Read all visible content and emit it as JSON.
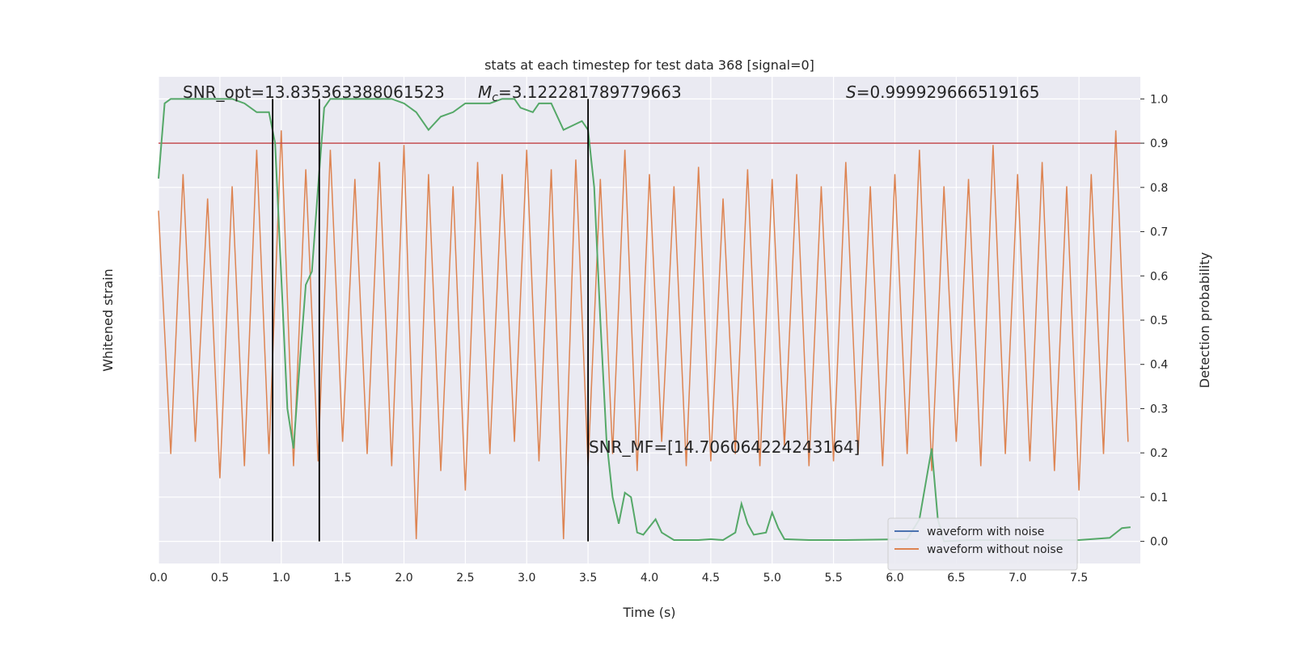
{
  "chart_data": {
    "type": "line",
    "title": "stats at each timestep for test data 368 [signal=0]",
    "x_label": "Time (s)",
    "y_label": "Whitened strain",
    "y2_label": "Detection probability",
    "xlim": [
      0,
      8
    ],
    "xticks": [
      {
        "value": 0,
        "label": "0.0"
      },
      0.5,
      {
        "value": 1,
        "label": "1.0"
      },
      1.5,
      {
        "value": 2,
        "label": "2.0"
      },
      2.5,
      {
        "value": 3,
        "label": "3.0"
      },
      3.5,
      {
        "value": 4,
        "label": "4.0"
      },
      4.5,
      {
        "value": 5,
        "label": "5.0"
      },
      5.5,
      {
        "value": 6,
        "label": "6.0"
      },
      6.5,
      {
        "value": 7,
        "label": "7.0"
      },
      7.5
    ],
    "ylim": [
      -1,
      1
    ],
    "y2lim": [
      -0.05,
      1.05
    ],
    "y2ticks": [
      {
        "value": 0,
        "label": "0.0"
      },
      0.1,
      0.2,
      0.3,
      0.4,
      0.5,
      0.6,
      0.7,
      0.8,
      0.9,
      {
        "value": 1,
        "label": "1.0"
      }
    ],
    "grid": true,
    "legend": "lower right",
    "x": [
      0,
      0.1,
      0.2,
      0.3,
      0.4,
      0.5,
      0.6,
      0.7,
      0.8,
      0.9,
      1,
      1.1,
      1.2,
      1.3,
      1.4,
      1.5,
      1.6,
      1.7,
      1.8,
      1.9,
      2,
      2.1,
      2.2,
      2.3,
      2.4,
      2.5,
      2.6,
      2.7,
      2.8,
      2.9,
      3,
      3.1,
      3.2,
      3.3,
      3.4,
      3.5,
      3.6,
      3.7,
      3.8,
      3.9,
      4,
      4.1,
      4.2,
      4.3,
      4.4,
      4.5,
      4.6,
      4.7,
      4.8,
      4.9,
      5,
      5.1,
      5.2,
      5.3,
      5.4,
      5.5,
      5.6,
      5.7,
      5.8,
      5.9,
      6,
      6.1,
      6.2,
      6.3,
      6.4,
      6.5,
      6.6,
      6.7,
      6.8,
      6.9,
      7,
      7.1,
      7.2,
      7.3,
      7.4,
      7.5,
      7.6,
      7.7,
      7.8,
      7.9
    ],
    "series": [
      {
        "name": "waveform with noise",
        "color": "#4c72b0"
      },
      {
        "name": "waveform without noise",
        "color": "#dd8452",
        "values": [
          0.45,
          -0.55,
          0.6,
          -0.5,
          0.5,
          -0.65,
          0.55,
          -0.6,
          0.7,
          -0.55,
          0.78,
          -0.6,
          0.62,
          -0.58,
          0.7,
          -0.5,
          0.58,
          -0.55,
          0.65,
          -0.6,
          0.72,
          -0.9,
          0.6,
          -0.62,
          0.55,
          -0.7,
          0.65,
          -0.55,
          0.6,
          -0.5,
          0.7,
          -0.58,
          0.62,
          -0.9,
          0.66,
          -0.6,
          0.58,
          -0.55,
          0.7,
          -0.62,
          0.6,
          -0.5,
          0.55,
          -0.6,
          0.63,
          -0.58,
          0.5,
          -0.55,
          0.62,
          -0.6,
          0.58,
          -0.52,
          0.6,
          -0.6,
          0.55,
          -0.58,
          0.65,
          -0.55,
          0.55,
          -0.6,
          0.6,
          -0.55,
          0.7,
          -0.62,
          0.55,
          -0.5,
          0.58,
          -0.6,
          0.72,
          -0.55,
          0.6,
          -0.58,
          0.65,
          -0.62,
          0.55,
          -0.7,
          0.6,
          -0.55,
          0.78,
          -0.5
        ]
      }
    ],
    "probability": {
      "color": "#55a868",
      "axis": "y2",
      "x": [
        0,
        0.05,
        0.1,
        0.3,
        0.6,
        0.7,
        0.8,
        0.9,
        0.95,
        1.0,
        1.05,
        1.1,
        1.15,
        1.2,
        1.25,
        1.3,
        1.35,
        1.4,
        1.9,
        2.0,
        2.1,
        2.2,
        2.3,
        2.4,
        2.5,
        2.6,
        2.7,
        2.8,
        2.9,
        2.95,
        3.05,
        3.1,
        3.2,
        3.3,
        3.45,
        3.5,
        3.55,
        3.6,
        3.65,
        3.7,
        3.75,
        3.8,
        3.85,
        3.9,
        3.95,
        4.05,
        4.1,
        4.2,
        4.4,
        4.5,
        4.6,
        4.7,
        4.75,
        4.8,
        4.85,
        4.95,
        5.0,
        5.05,
        5.1,
        5.3,
        5.6,
        6.1,
        6.2,
        6.25,
        6.3,
        6.35,
        6.4,
        6.6,
        7.0,
        7.5,
        7.75,
        7.85,
        7.92
      ],
      "values": [
        0.82,
        0.99,
        1.0,
        1.0,
        1.0,
        0.99,
        0.97,
        0.97,
        0.9,
        0.6,
        0.3,
        0.21,
        0.4,
        0.58,
        0.61,
        0.8,
        0.98,
        1.0,
        1.0,
        0.99,
        0.97,
        0.93,
        0.96,
        0.97,
        0.99,
        0.99,
        0.99,
        1.0,
        1.0,
        0.98,
        0.97,
        0.99,
        0.99,
        0.93,
        0.95,
        0.93,
        0.8,
        0.5,
        0.23,
        0.1,
        0.04,
        0.11,
        0.1,
        0.02,
        0.015,
        0.05,
        0.02,
        0.003,
        0.003,
        0.005,
        0.003,
        0.02,
        0.085,
        0.04,
        0.015,
        0.02,
        0.065,
        0.03,
        0.005,
        0.003,
        0.003,
        0.005,
        0.05,
        0.13,
        0.21,
        0.05,
        0.0,
        0.003,
        0.003,
        0.003,
        0.008,
        0.03,
        0.032
      ]
    },
    "threshold": {
      "value": 0.9,
      "color": "#c44e52",
      "axis": "y2"
    },
    "vlines": {
      "x": [
        0.93,
        1.31,
        3.5
      ],
      "color": "#000000"
    },
    "annotations": [
      {
        "text": "SNR_opt=13.835363388061523"
      },
      {
        "symbol": "M",
        "subscript": "c",
        "text": "=3.122281789779663"
      },
      {
        "symbol": "S",
        "text": "=0.999929666519165"
      },
      {
        "text": "SNR_MF=[14.706064224243164]"
      }
    ]
  }
}
